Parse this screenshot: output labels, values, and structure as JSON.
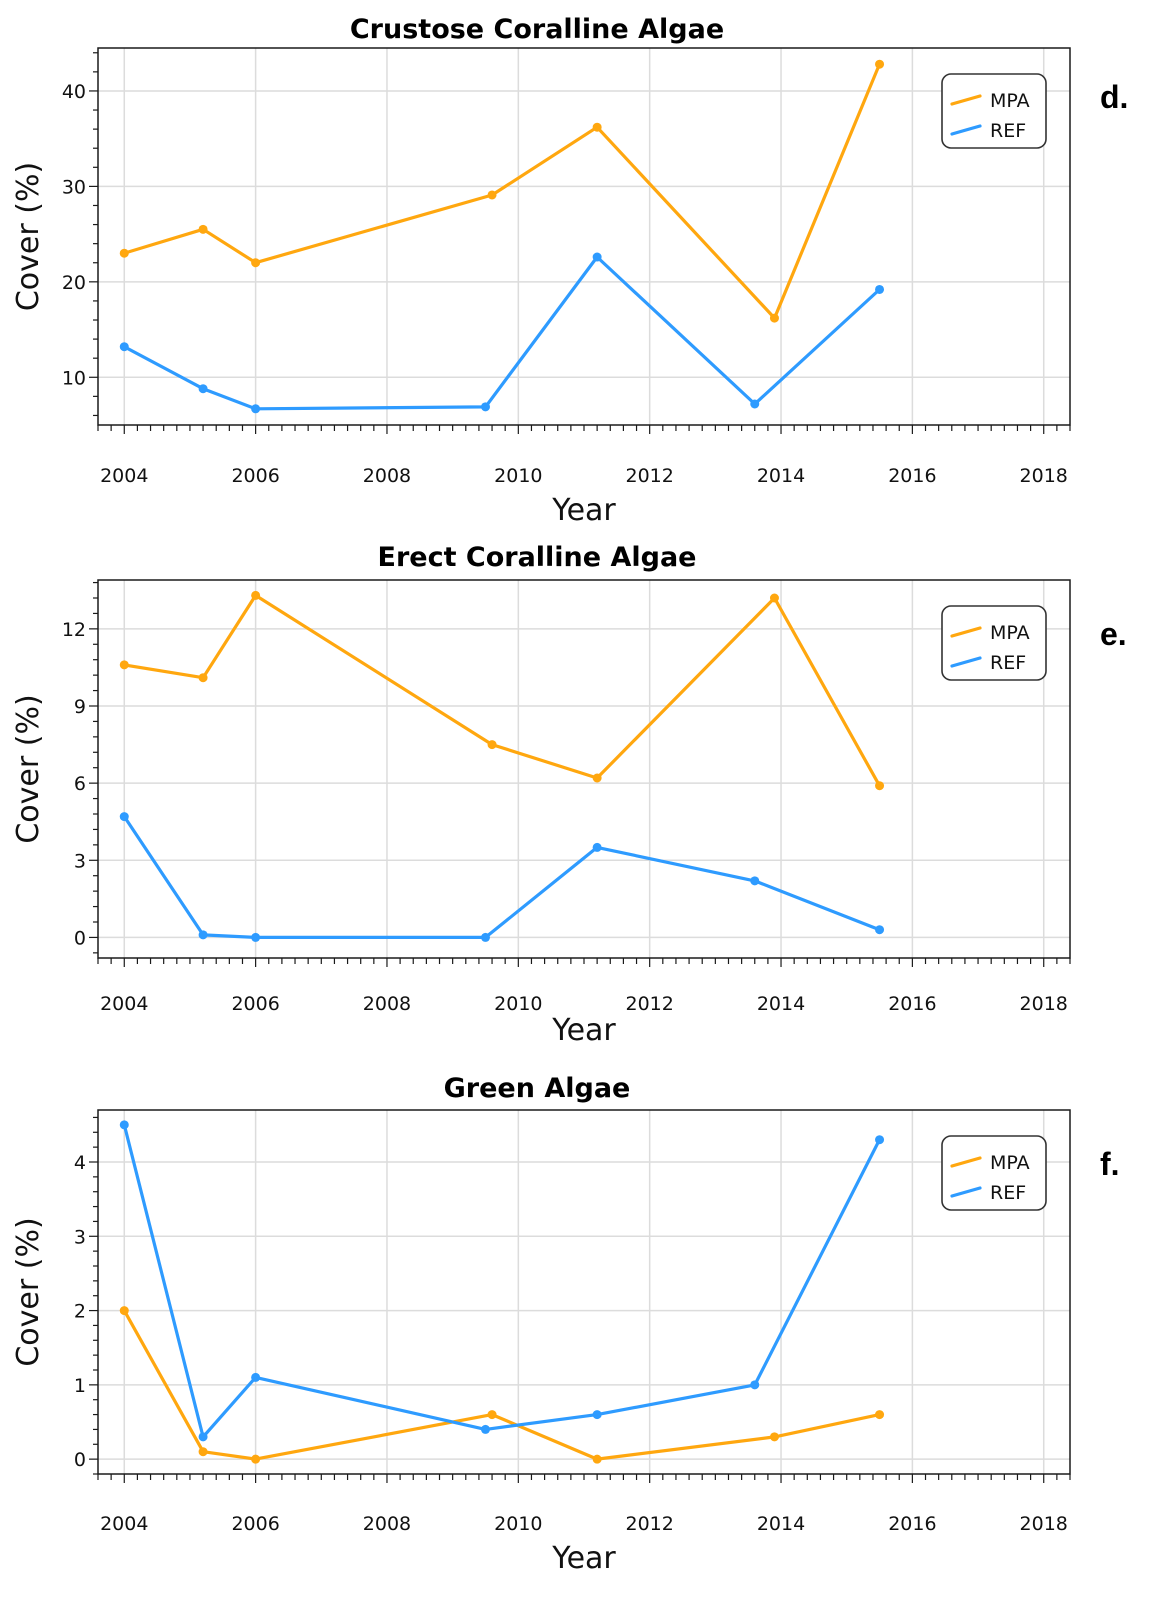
{
  "chart_data": [
    {
      "type": "line",
      "title": "Crustose Coralline Algae",
      "xlabel": "Year",
      "ylabel": "Cover (%)",
      "panel_label": "d.",
      "xlim": [
        2003.6,
        2018.4
      ],
      "ylim": [
        5,
        44.5
      ],
      "xticks": [
        2004,
        2006,
        2008,
        2010,
        2012,
        2014,
        2016,
        2018
      ],
      "yticks": [
        10,
        20,
        30,
        40
      ],
      "grid": true,
      "legend": "top-right",
      "series": [
        {
          "name": "MPA",
          "color": "#FFA70F",
          "x": [
            2004.0,
            2005.2,
            2006.0,
            2009.6,
            2011.2,
            2013.9,
            2015.5
          ],
          "y": [
            23.0,
            25.5,
            22.0,
            29.1,
            36.2,
            16.2,
            42.8
          ]
        },
        {
          "name": "REF",
          "color": "#2E9BFF",
          "x": [
            2004.0,
            2005.2,
            2006.0,
            2009.5,
            2011.2,
            2013.6,
            2015.5
          ],
          "y": [
            13.2,
            8.8,
            6.7,
            6.9,
            22.6,
            7.2,
            19.2
          ]
        }
      ]
    },
    {
      "type": "line",
      "title": "Erect Coralline Algae",
      "xlabel": "Year",
      "ylabel": "Cover (%)",
      "panel_label": "e.",
      "xlim": [
        2003.6,
        2018.4
      ],
      "ylim": [
        -0.8,
        13.9
      ],
      "xticks": [
        2004,
        2006,
        2008,
        2010,
        2012,
        2014,
        2016,
        2018
      ],
      "yticks": [
        0,
        3,
        6,
        9,
        12
      ],
      "grid": true,
      "legend": "top-right",
      "series": [
        {
          "name": "MPA",
          "color": "#FFA70F",
          "x": [
            2004.0,
            2005.2,
            2006.0,
            2009.6,
            2011.2,
            2013.9,
            2015.5
          ],
          "y": [
            10.6,
            10.1,
            13.3,
            7.5,
            6.2,
            13.2,
            5.9
          ]
        },
        {
          "name": "REF",
          "color": "#2E9BFF",
          "x": [
            2004.0,
            2005.2,
            2006.0,
            2009.5,
            2011.2,
            2013.6,
            2015.5
          ],
          "y": [
            4.7,
            0.1,
            0.0,
            0.0,
            3.5,
            2.2,
            0.3
          ]
        }
      ]
    },
    {
      "type": "line",
      "title": "Green Algae",
      "xlabel": "Year",
      "ylabel": "Cover (%)",
      "panel_label": "f.",
      "xlim": [
        2003.6,
        2018.4
      ],
      "ylim": [
        -0.2,
        4.7
      ],
      "xticks": [
        2004,
        2006,
        2008,
        2010,
        2012,
        2014,
        2016,
        2018
      ],
      "yticks": [
        0,
        1,
        2,
        3,
        4
      ],
      "grid": true,
      "legend": "top-right",
      "series": [
        {
          "name": "MPA",
          "color": "#FFA70F",
          "x": [
            2004.0,
            2005.2,
            2006.0,
            2009.6,
            2011.2,
            2013.9,
            2015.5
          ],
          "y": [
            2.0,
            0.1,
            0.0,
            0.6,
            0.0,
            0.3,
            0.6
          ]
        },
        {
          "name": "REF",
          "color": "#2E9BFF",
          "x": [
            2004.0,
            2005.2,
            2006.0,
            2009.5,
            2011.2,
            2013.6,
            2015.5
          ],
          "y": [
            4.5,
            0.3,
            1.1,
            0.4,
            0.6,
            1.0,
            4.3
          ]
        }
      ]
    }
  ]
}
